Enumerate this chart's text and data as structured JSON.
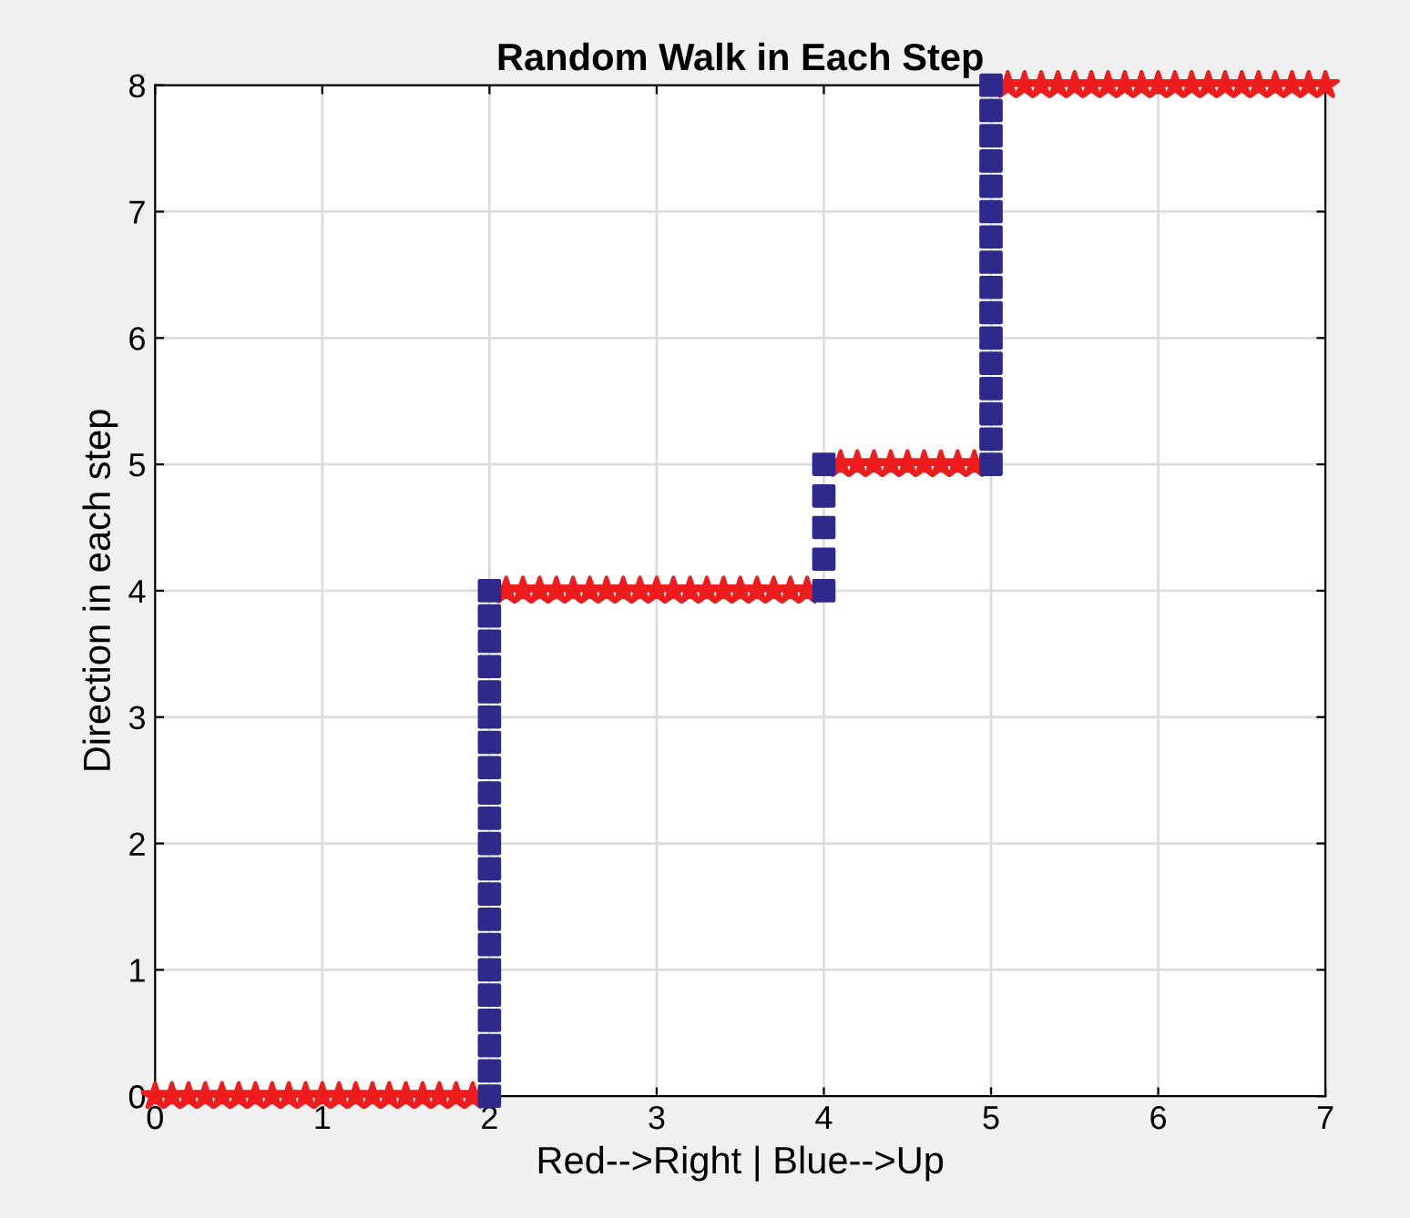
{
  "chart_data": {
    "type": "scatter",
    "title": "Random Walk in Each Step",
    "xlabel": "Red-->Right | Blue-->Up",
    "ylabel": "Direction in each step",
    "xlim": [
      0,
      7
    ],
    "xticks": [
      0,
      1,
      2,
      3,
      4,
      5,
      6,
      7
    ],
    "ylim": [
      0,
      8
    ],
    "yticks": [
      0,
      1,
      2,
      3,
      4,
      5,
      6,
      7,
      8
    ],
    "grid": true,
    "series": [
      {
        "color": "#ee1c1c",
        "marker": "star",
        "x": [
          0,
          0.1,
          0.2,
          0.3,
          0.4,
          0.5,
          0.6,
          0.7,
          0.8,
          0.9,
          1.0,
          1.1,
          1.2,
          1.3,
          1.4,
          1.5,
          1.6,
          1.7,
          1.8,
          1.9,
          2.1,
          2.2,
          2.3,
          2.4,
          2.5,
          2.6,
          2.7,
          2.8,
          2.9,
          3.0,
          3.1,
          3.2,
          3.3,
          3.4,
          3.5,
          3.6,
          3.7,
          3.8,
          3.9,
          4.1,
          4.2,
          4.3,
          4.4,
          4.5,
          4.6,
          4.7,
          4.8,
          4.9,
          5.1,
          5.2,
          5.3,
          5.4,
          5.5,
          5.6,
          5.7,
          5.8,
          5.9,
          6.0,
          6.1,
          6.2,
          6.3,
          6.4,
          6.5,
          6.6,
          6.7,
          6.8,
          6.9,
          7.0
        ],
        "values": [
          0,
          0,
          0,
          0,
          0,
          0,
          0,
          0,
          0,
          0,
          0,
          0,
          0,
          0,
          0,
          0,
          0,
          0,
          0,
          0,
          4,
          4,
          4,
          4,
          4,
          4,
          4,
          4,
          4,
          4,
          4,
          4,
          4,
          4,
          4,
          4,
          4,
          4,
          4,
          5,
          5,
          5,
          5,
          5,
          5,
          5,
          5,
          5,
          8,
          8,
          8,
          8,
          8,
          8,
          8,
          8,
          8,
          8,
          8,
          8,
          8,
          8,
          8,
          8,
          8,
          8,
          8,
          8
        ]
      },
      {
        "color": "#2e2a8c",
        "marker": "square",
        "x": [
          2,
          2,
          2,
          2,
          2,
          2,
          2,
          2,
          2,
          2,
          2,
          2,
          2,
          2,
          2,
          2,
          2,
          2,
          2,
          2,
          2,
          4,
          4,
          4,
          4,
          4,
          5,
          5,
          5,
          5,
          5,
          5,
          5,
          5,
          5,
          5,
          5,
          5,
          5,
          5,
          5,
          5
        ],
        "values": [
          0,
          0.2,
          0.4,
          0.6,
          0.8,
          1.0,
          1.2,
          1.4,
          1.6,
          1.8,
          2.0,
          2.2,
          2.4,
          2.6,
          2.8,
          3.0,
          3.2,
          3.4,
          3.6,
          3.8,
          4.0,
          4.0,
          4.25,
          4.5,
          4.75,
          5.0,
          5.0,
          5.2,
          5.4,
          5.6,
          5.8,
          6.0,
          6.2,
          6.4,
          6.6,
          6.8,
          7.0,
          7.2,
          7.4,
          7.6,
          7.8,
          8.0
        ]
      }
    ]
  }
}
